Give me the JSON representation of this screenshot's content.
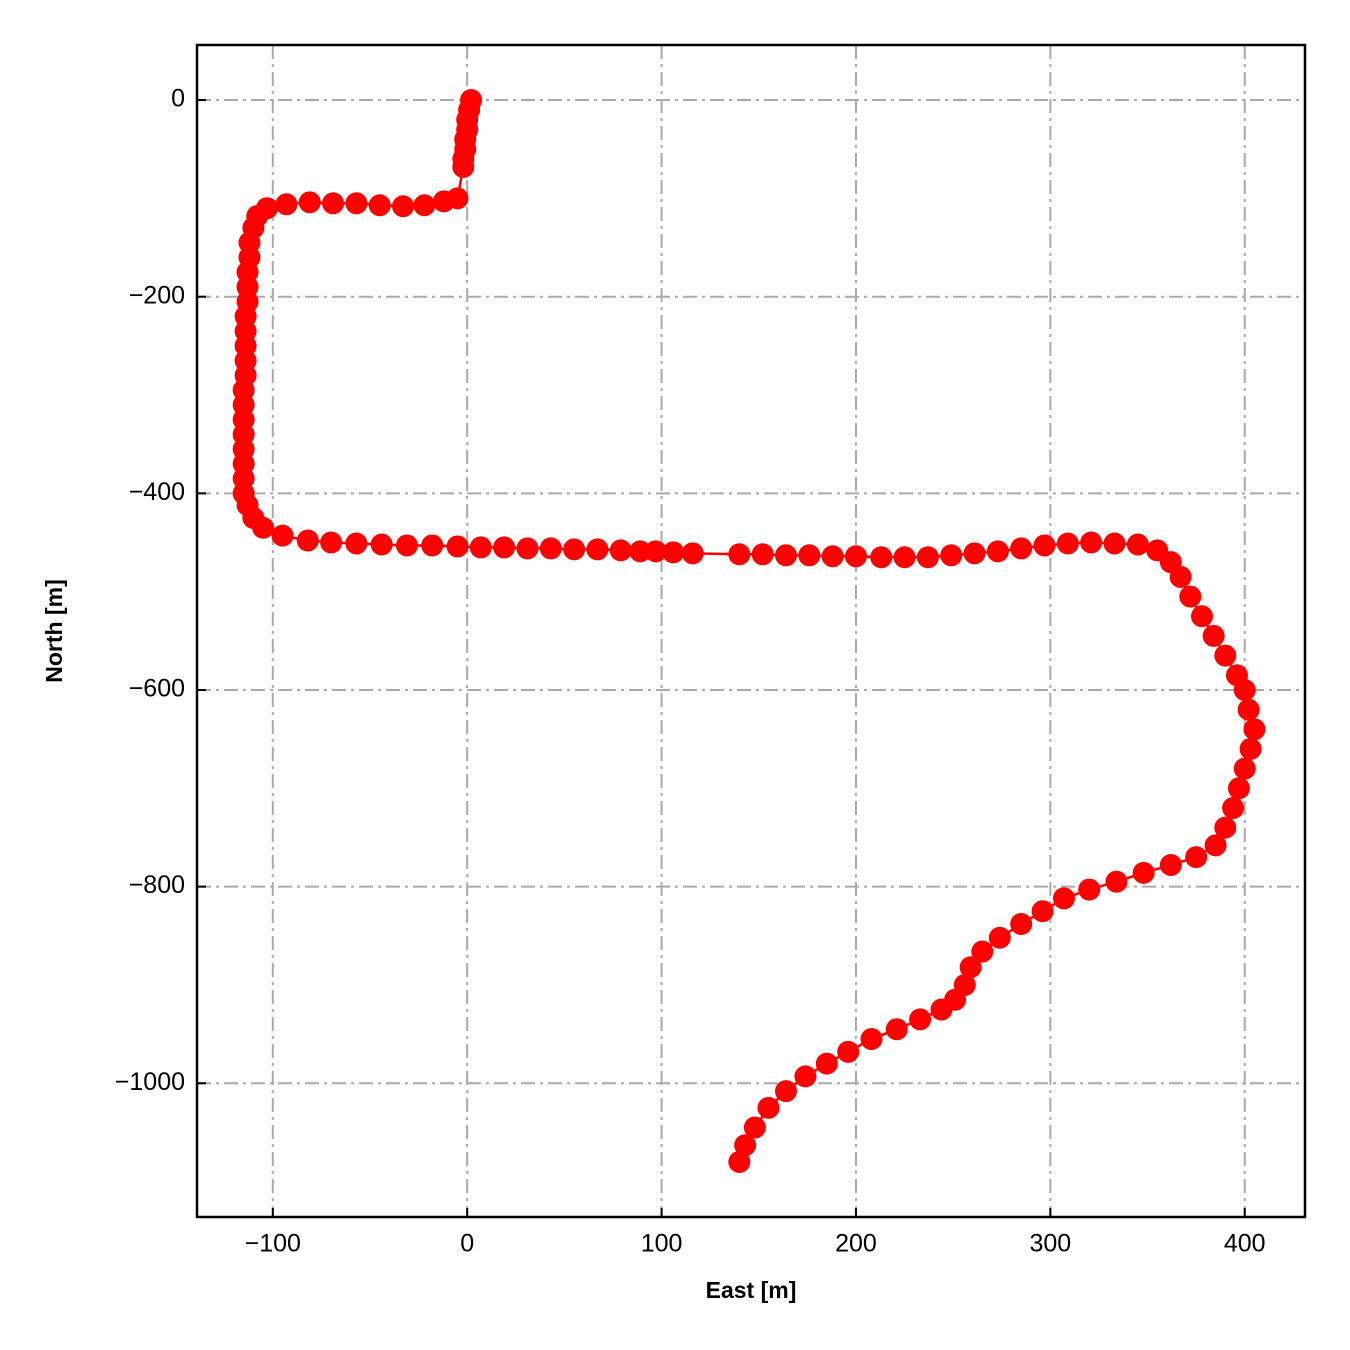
{
  "chart_data": {
    "type": "line",
    "xlabel": "East [m]",
    "ylabel": "North [m]",
    "x": [
      2,
      1,
      0,
      0,
      -1,
      -1,
      -2,
      -2,
      -5,
      -12,
      -22,
      -33,
      -45,
      -57,
      -69,
      -81,
      -93,
      -103,
      -108,
      -110,
      -112,
      -112,
      -113,
      -113,
      -113,
      -114,
      -114,
      -114,
      -114,
      -114,
      -115,
      -115,
      -115,
      -115,
      -115,
      -115,
      -115,
      -115,
      -113,
      -110,
      -105,
      -95,
      -82,
      -70,
      -57,
      -44,
      -31,
      -18,
      -5,
      7,
      19,
      31,
      43,
      55,
      67,
      79,
      89,
      97,
      106,
      116,
      140,
      152,
      164,
      176,
      188,
      200,
      213,
      225,
      237,
      249,
      261,
      273,
      285,
      297,
      309,
      321,
      333,
      345,
      355,
      362,
      367,
      372,
      378,
      384,
      390,
      396,
      400,
      402,
      405,
      403,
      400,
      397,
      394,
      390,
      385,
      375,
      362,
      348,
      334,
      320,
      307,
      296,
      285,
      274,
      265,
      259,
      256,
      251,
      244,
      233,
      221,
      208,
      196,
      185,
      174,
      164,
      155,
      148,
      143,
      140
    ],
    "values": [
      0,
      -10,
      -20,
      -30,
      -40,
      -50,
      -60,
      -68,
      -100,
      -103,
      -107,
      -108,
      -107,
      -105,
      -105,
      -104,
      -106,
      -110,
      -118,
      -130,
      -145,
      -160,
      -175,
      -190,
      -205,
      -220,
      -235,
      -250,
      -265,
      -280,
      -295,
      -310,
      -325,
      -340,
      -355,
      -370,
      -385,
      -400,
      -412,
      -425,
      -435,
      -443,
      -448,
      -450,
      -451,
      -452,
      -453,
      -453,
      -454,
      -455,
      -455,
      -456,
      -456,
      -457,
      -457,
      -458,
      -459,
      -459,
      -460,
      -461,
      -462,
      -462,
      -463,
      -463,
      -464,
      -464,
      -465,
      -465,
      -465,
      -463,
      -461,
      -459,
      -456,
      -453,
      -451,
      -450,
      -451,
      -452,
      -458,
      -470,
      -485,
      -505,
      -525,
      -545,
      -565,
      -585,
      -600,
      -620,
      -640,
      -660,
      -680,
      -700,
      -720,
      -740,
      -758,
      -770,
      -778,
      -786,
      -795,
      -803,
      -812,
      -825,
      -838,
      -852,
      -866,
      -882,
      -900,
      -915,
      -925,
      -935,
      -945,
      -955,
      -968,
      -980,
      -993,
      -1008,
      -1025,
      -1045,
      -1063,
      -1080
    ],
    "color": "#ff0000",
    "marker": true,
    "grid": true,
    "xlim": [
      -139,
      431
    ],
    "xticks": [
      {
        "value": -100,
        "label": "−100"
      },
      0,
      100,
      200,
      300,
      400
    ],
    "ylim": [
      -1136,
      56
    ],
    "yticks": [
      0,
      {
        "value": -200,
        "label": "−200"
      },
      {
        "value": -400,
        "label": "−400"
      },
      {
        "value": -600,
        "label": "−600"
      },
      {
        "value": -800,
        "label": "−800"
      },
      {
        "value": -1000,
        "label": "−1000"
      }
    ]
  }
}
